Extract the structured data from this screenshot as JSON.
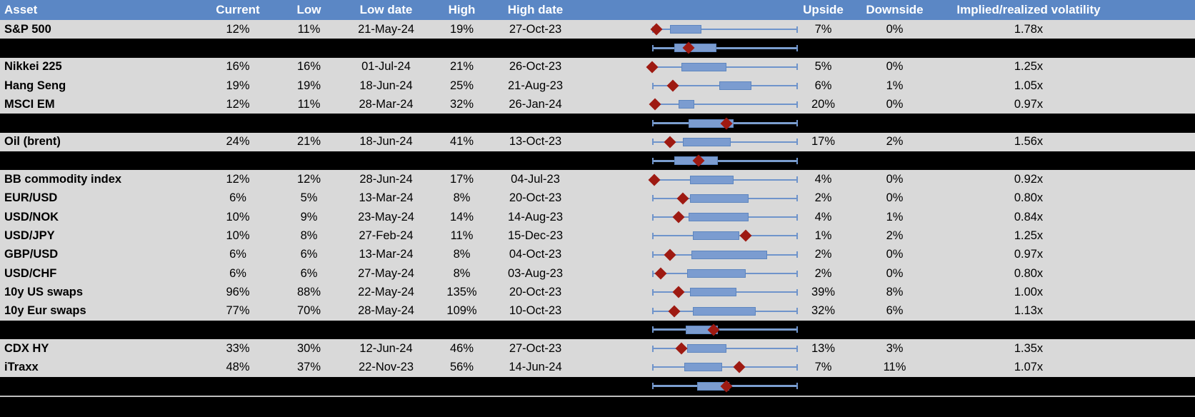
{
  "colors": {
    "header_bg": "#5B87C5",
    "header_text": "#FFFFFF",
    "row_bg": "#D9D9D9",
    "spacer_bg": "#000000",
    "whisker_blue": "#6F94CB",
    "box_blue": "#7B9CD0",
    "box_border_blue": "#5E86BF",
    "diamond_red": "#9E1A12",
    "footer_line": "#BFBFBF"
  },
  "chart_data": {
    "type": "table",
    "embedded_plot_type": "boxplot-range (whisker = low-high range, box = interquartile band, red diamond = current implied volatility)",
    "columns": [
      "Asset",
      "Current",
      "Low",
      "Low date",
      "High",
      "High date",
      "",
      "Upside",
      "Downside",
      "Implied/realized volatility"
    ],
    "rows": [
      {
        "label": "S&P 500",
        "current": "12%",
        "low": "11%",
        "low_date": "21-May-24",
        "high": "19%",
        "high_date": "27-Oct-23",
        "upside": "7%",
        "downside": "0%",
        "ratio": "1.78x",
        "spacer": false,
        "plot": {
          "box_start": 0.12,
          "box_end": 0.34,
          "diamond": 0.03
        }
      },
      {
        "label": "",
        "current": "",
        "low": "",
        "low_date": "",
        "high": "",
        "high_date": "",
        "upside": "",
        "downside": "",
        "ratio": "",
        "spacer": true,
        "plot": {
          "box_start": 0.15,
          "box_end": 0.44,
          "diamond": 0.25
        }
      },
      {
        "label": "Nikkei 225",
        "current": "16%",
        "low": "16%",
        "low_date": "01-Jul-24",
        "high": "21%",
        "high_date": "26-Oct-23",
        "upside": "5%",
        "downside": "0%",
        "ratio": "1.25x",
        "spacer": false,
        "plot": {
          "box_start": 0.2,
          "box_end": 0.51,
          "diamond": 0.0
        }
      },
      {
        "label": "Hang Seng",
        "current": "19%",
        "low": "19%",
        "low_date": "18-Jun-24",
        "high": "25%",
        "high_date": "21-Aug-23",
        "upside": "6%",
        "downside": "1%",
        "ratio": "1.05x",
        "spacer": false,
        "plot": {
          "box_start": 0.46,
          "box_end": 0.68,
          "diamond": 0.14
        }
      },
      {
        "label": "MSCI EM",
        "current": "12%",
        "low": "11%",
        "low_date": "28-Mar-24",
        "high": "32%",
        "high_date": "26-Jan-24",
        "upside": "20%",
        "downside": "0%",
        "ratio": "0.97x",
        "spacer": false,
        "plot": {
          "box_start": 0.18,
          "box_end": 0.29,
          "diamond": 0.02
        }
      },
      {
        "label": "",
        "current": "",
        "low": "",
        "low_date": "",
        "high": "",
        "high_date": "",
        "upside": "",
        "downside": "",
        "ratio": "",
        "spacer": true,
        "plot": {
          "box_start": 0.25,
          "box_end": 0.56,
          "diamond": 0.51
        }
      },
      {
        "label": "Oil (brent)",
        "current": "24%",
        "low": "21%",
        "low_date": "18-Jun-24",
        "high": "41%",
        "high_date": "13-Oct-23",
        "upside": "17%",
        "downside": "2%",
        "ratio": "1.56x",
        "spacer": false,
        "plot": {
          "box_start": 0.21,
          "box_end": 0.54,
          "diamond": 0.12
        }
      },
      {
        "label": "",
        "current": "",
        "low": "",
        "low_date": "",
        "high": "",
        "high_date": "",
        "upside": "",
        "downside": "",
        "ratio": "",
        "spacer": true,
        "plot": {
          "box_start": 0.15,
          "box_end": 0.45,
          "diamond": 0.32
        }
      },
      {
        "label": "BB commodity index",
        "current": "12%",
        "low": "12%",
        "low_date": "28-Jun-24",
        "high": "17%",
        "high_date": "04-Jul-23",
        "upside": "4%",
        "downside": "0%",
        "ratio": "0.92x",
        "spacer": false,
        "plot": {
          "box_start": 0.26,
          "box_end": 0.56,
          "diamond": 0.015
        }
      },
      {
        "label": "EUR/USD",
        "current": "6%",
        "low": "5%",
        "low_date": "13-Mar-24",
        "high": "8%",
        "high_date": "20-Oct-23",
        "upside": "2%",
        "downside": "0%",
        "ratio": "0.80x",
        "spacer": false,
        "plot": {
          "box_start": 0.26,
          "box_end": 0.66,
          "diamond": 0.21
        }
      },
      {
        "label": "USD/NOK",
        "current": "10%",
        "low": "9%",
        "low_date": "23-May-24",
        "high": "14%",
        "high_date": "14-Aug-23",
        "upside": "4%",
        "downside": "1%",
        "ratio": "0.84x",
        "spacer": false,
        "plot": {
          "box_start": 0.25,
          "box_end": 0.66,
          "diamond": 0.18
        }
      },
      {
        "label": "USD/JPY",
        "current": "10%",
        "low": "8%",
        "low_date": "27-Feb-24",
        "high": "11%",
        "high_date": "15-Dec-23",
        "upside": "1%",
        "downside": "2%",
        "ratio": "1.25x",
        "spacer": false,
        "plot": {
          "box_start": 0.28,
          "box_end": 0.6,
          "diamond": 0.64
        }
      },
      {
        "label": "GBP/USD",
        "current": "6%",
        "low": "6%",
        "low_date": "13-Mar-24",
        "high": "8%",
        "high_date": "04-Oct-23",
        "upside": "2%",
        "downside": "0%",
        "ratio": "0.97x",
        "spacer": false,
        "plot": {
          "box_start": 0.27,
          "box_end": 0.79,
          "diamond": 0.12
        }
      },
      {
        "label": "USD/CHF",
        "current": "6%",
        "low": "6%",
        "low_date": "27-May-24",
        "high": "8%",
        "high_date": "03-Aug-23",
        "upside": "2%",
        "downside": "0%",
        "ratio": "0.80x",
        "spacer": false,
        "plot": {
          "box_start": 0.24,
          "box_end": 0.64,
          "diamond": 0.06
        }
      },
      {
        "label": "10y US swaps",
        "current": "96%",
        "low": "88%",
        "low_date": "22-May-24",
        "high": "135%",
        "high_date": "20-Oct-23",
        "upside": "39%",
        "downside": "8%",
        "ratio": "1.00x",
        "spacer": false,
        "plot": {
          "box_start": 0.26,
          "box_end": 0.58,
          "diamond": 0.18
        }
      },
      {
        "label": "10y Eur swaps",
        "current": "77%",
        "low": "70%",
        "low_date": "28-May-24",
        "high": "109%",
        "high_date": "10-Oct-23",
        "upside": "32%",
        "downside": "6%",
        "ratio": "1.13x",
        "spacer": false,
        "plot": {
          "box_start": 0.28,
          "box_end": 0.71,
          "diamond": 0.15
        }
      },
      {
        "label": "",
        "current": "",
        "low": "",
        "low_date": "",
        "high": "",
        "high_date": "",
        "upside": "",
        "downside": "",
        "ratio": "",
        "spacer": true,
        "plot": {
          "box_start": 0.23,
          "box_end": 0.45,
          "diamond": 0.42
        }
      },
      {
        "label": "CDX HY",
        "current": "33%",
        "low": "30%",
        "low_date": "12-Jun-24",
        "high": "46%",
        "high_date": "27-Oct-23",
        "upside": "13%",
        "downside": "3%",
        "ratio": "1.35x",
        "spacer": false,
        "plot": {
          "box_start": 0.24,
          "box_end": 0.51,
          "diamond": 0.2
        }
      },
      {
        "label": "iTraxx",
        "current": "48%",
        "low": "37%",
        "low_date": "22-Nov-23",
        "high": "56%",
        "high_date": "14-Jun-24",
        "upside": "7%",
        "downside": "11%",
        "ratio": "1.07x",
        "spacer": false,
        "plot": {
          "box_start": 0.22,
          "box_end": 0.48,
          "diamond": 0.6
        }
      },
      {
        "label": "",
        "current": "",
        "low": "",
        "low_date": "",
        "high": "",
        "high_date": "",
        "upside": "",
        "downside": "",
        "ratio": "",
        "spacer": true,
        "plot": {
          "box_start": 0.31,
          "box_end": 0.53,
          "diamond": 0.51
        }
      }
    ]
  }
}
